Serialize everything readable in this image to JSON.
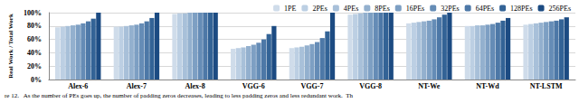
{
  "chart_data": {
    "type": "bar",
    "ylabel": "Real Work / Total Work",
    "caption": "re 12.   As the number of PEs goes up, the number of padding zeros decreases, leading to less padding zeros and less redundant work.  Th",
    "categories": [
      "Alex-6",
      "Alex-7",
      "Alex-8",
      "VGG-6",
      "VGG-7",
      "VGG-8",
      "NT-We",
      "NT-Wd",
      "NT-LSTM"
    ],
    "series": [
      {
        "name": "1PE",
        "color": "#cfdcea",
        "values": [
          78,
          79,
          98,
          46,
          47,
          97,
          84,
          80,
          82
        ]
      },
      {
        "name": "2PEs",
        "color": "#bccfe3",
        "values": [
          79,
          79,
          99,
          47,
          48,
          98,
          85,
          80,
          83
        ]
      },
      {
        "name": "4PEs",
        "color": "#a8c0d9",
        "values": [
          80,
          80,
          99,
          48,
          49,
          99,
          86,
          81,
          84
        ]
      },
      {
        "name": "8PEs",
        "color": "#93b0ce",
        "values": [
          81,
          81,
          100,
          50,
          51,
          100,
          87,
          81,
          85
        ]
      },
      {
        "name": "16PEs",
        "color": "#7d9fc3",
        "values": [
          82,
          82,
          100,
          52,
          53,
          100,
          88,
          82,
          86
        ]
      },
      {
        "name": "32PEs",
        "color": "#658cb6",
        "values": [
          84,
          84,
          100,
          55,
          56,
          100,
          90,
          83,
          87
        ]
      },
      {
        "name": "64PEs",
        "color": "#4d78a7",
        "values": [
          87,
          87,
          100,
          60,
          62,
          100,
          93,
          85,
          88
        ]
      },
      {
        "name": "128PEs",
        "color": "#336396",
        "values": [
          91,
          92,
          100,
          68,
          72,
          100,
          97,
          88,
          90
        ]
      },
      {
        "name": "256PEs",
        "color": "#1c4b82",
        "values": [
          100,
          100,
          100,
          80,
          100,
          100,
          100,
          92,
          93
        ]
      }
    ],
    "ylim": [
      0,
      100
    ],
    "yticks": [
      {
        "value": 0,
        "label": "0%"
      },
      {
        "value": 20,
        "label": "20%"
      },
      {
        "value": 40,
        "label": "40%"
      },
      {
        "value": 60,
        "label": "60%"
      },
      {
        "value": 80,
        "label": "80%"
      },
      {
        "value": 100,
        "label": "100%"
      }
    ],
    "grid": true,
    "legend": "top-right"
  }
}
